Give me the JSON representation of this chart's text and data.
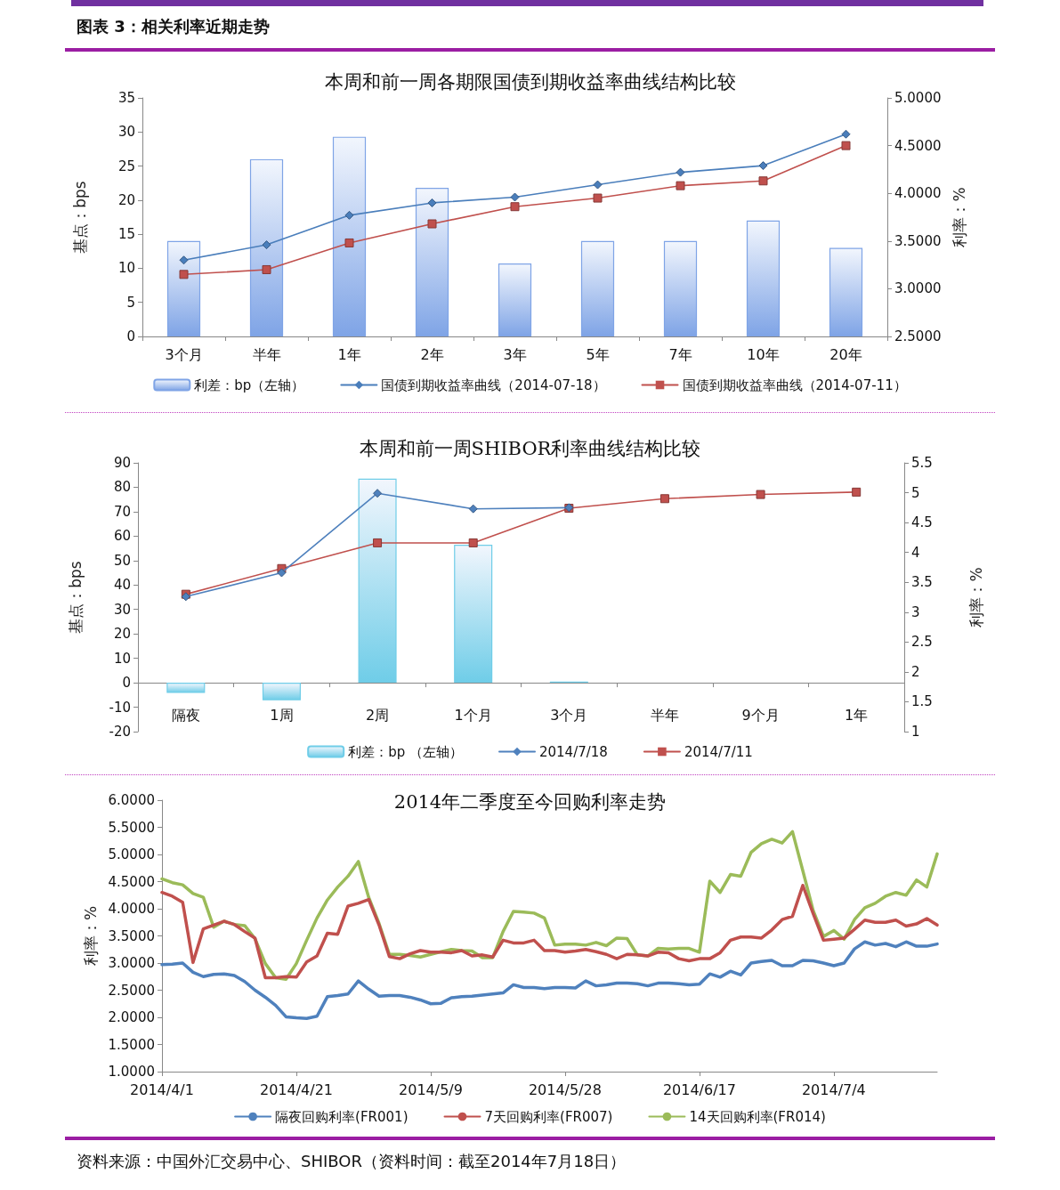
{
  "chart_data": [
    {
      "type": "bar",
      "title": "本周和前一周各期限国债到期收益率曲线结构比较",
      "annotations": [
        "图表 3：相关利率近期走势"
      ],
      "ylabel": "基点：bps",
      "y2label": "利率：%",
      "categories": [
        "3个月",
        "半年",
        "1年",
        "2年",
        "3年",
        "5年",
        "7年",
        "10年",
        "20年"
      ],
      "series": [
        {
          "name": "利差：bp（左轴）",
          "type": "bar",
          "color": "#7fa4e6",
          "values": [
            14,
            26,
            29.3,
            21.8,
            10.7,
            14,
            14,
            17,
            13
          ]
        },
        {
          "name": "国债到期收益率曲线（2014-07-18）",
          "type": "line",
          "axis": "y2",
          "marker": "diamond",
          "color": "#4a7ebb",
          "values": [
            3.3,
            3.46,
            3.77,
            3.9,
            3.96,
            4.09,
            4.22,
            4.29,
            4.62
          ]
        },
        {
          "name": "国债到期收益率曲线（2014-07-11）",
          "type": "line",
          "axis": "y2",
          "marker": "square",
          "color": "#c0504d",
          "values": [
            3.15,
            3.2,
            3.48,
            3.68,
            3.86,
            3.95,
            4.08,
            4.13,
            4.5
          ]
        }
      ],
      "ylim": [
        0,
        35
      ],
      "yticks": [
        0,
        5,
        10,
        15,
        20,
        25,
        30,
        35
      ],
      "y2lim": [
        2.5,
        5
      ],
      "y2ticks": [
        {
          "value": 2.5,
          "label": "2.5000"
        },
        {
          "value": 3,
          "label": "3.0000"
        },
        {
          "value": 3.5,
          "label": "3.5000"
        },
        {
          "value": 4,
          "label": "4.0000"
        },
        {
          "value": 4.5,
          "label": "4.5000"
        },
        {
          "value": 5,
          "label": "5.0000"
        }
      ],
      "grid": false,
      "legend": "bottom"
    },
    {
      "type": "bar",
      "title": "本周和前一周SHIBOR利率曲线结构比较",
      "ylabel": "基点：bps",
      "y2label": "利率：%",
      "categories": [
        "隔夜",
        "1周",
        "2周",
        "1个月",
        "3个月",
        "半年",
        "9个月",
        "1年"
      ],
      "series": [
        {
          "name": "利差：bp （左轴）",
          "type": "bar",
          "color": "#6fcde8",
          "values": [
            -4.2,
            -7.2,
            83.5,
            56.5,
            0.5,
            null,
            null,
            null
          ]
        },
        {
          "name": "2014/7/18",
          "type": "line",
          "axis": "y2",
          "marker": "diamond",
          "color": "#4f81bd",
          "values": [
            3.26,
            3.66,
            4.99,
            4.73,
            4.75,
            null,
            null,
            null
          ]
        },
        {
          "name": "2014/7/11",
          "type": "line",
          "axis": "y2",
          "marker": "square",
          "color": "#c0504d",
          "values": [
            3.3,
            3.73,
            4.16,
            4.16,
            4.74,
            4.9,
            4.97,
            5.01
          ]
        }
      ],
      "ylim": [
        -20,
        90
      ],
      "yticks": [
        -20,
        -10,
        0,
        10,
        20,
        30,
        40,
        50,
        60,
        70,
        80,
        90
      ],
      "y2lim": [
        1,
        5.5
      ],
      "y2ticks": [
        1,
        1.5,
        2,
        2.5,
        3,
        3.5,
        4,
        4.5,
        5,
        5.5
      ],
      "grid": false,
      "legend": "bottom"
    },
    {
      "type": "line",
      "title": "2014年二季度至今回购利率走势",
      "ylabel": "利率：%",
      "annotations": [
        "资料来源：中国外汇交易中心、SHIBOR（资料时间：截至2014年7月18日）"
      ],
      "categories": [
        "2014/4/1",
        null,
        null,
        null,
        null,
        null,
        null,
        null,
        null,
        null,
        null,
        null,
        null,
        "2014/4/21",
        null,
        null,
        null,
        null,
        null,
        null,
        null,
        null,
        null,
        null,
        null,
        null,
        "2014/5/9",
        null,
        null,
        null,
        null,
        null,
        null,
        null,
        null,
        null,
        null,
        null,
        null,
        "2014/5/28",
        null,
        null,
        null,
        null,
        null,
        null,
        null,
        null,
        null,
        null,
        null,
        null,
        "2014/6/17",
        null,
        null,
        null,
        null,
        null,
        null,
        null,
        null,
        null,
        null,
        null,
        null,
        "2014/7/4",
        null,
        null,
        null,
        null,
        null,
        null,
        null,
        null,
        null,
        null
      ],
      "series": [
        {
          "name": "隔夜回购利率(FR001)",
          "color": "#4f81bd",
          "values": [
            2.97,
            2.98,
            3.0,
            2.83,
            2.75,
            2.79,
            2.8,
            2.77,
            2.66,
            2.5,
            2.37,
            2.22,
            2.01,
            1.99,
            1.98,
            2.02,
            2.38,
            2.4,
            2.43,
            2.67,
            2.52,
            2.39,
            2.4,
            2.4,
            2.37,
            2.32,
            2.25,
            2.26,
            2.36,
            2.38,
            2.39,
            2.41,
            2.43,
            2.45,
            2.6,
            2.55,
            2.55,
            2.53,
            2.55,
            2.55,
            2.54,
            2.67,
            2.58,
            2.6,
            2.63,
            2.63,
            2.62,
            2.58,
            2.63,
            2.63,
            2.62,
            2.6,
            2.61,
            2.8,
            2.74,
            2.85,
            2.78,
            3.0,
            3.03,
            3.05,
            2.95,
            2.95,
            3.05,
            3.04,
            3.0,
            2.95,
            3.0,
            3.26,
            3.39,
            3.33,
            3.36,
            3.3,
            3.39,
            3.31,
            3.31,
            3.35
          ]
        },
        {
          "name": "7天回购利率(FR007)",
          "color": "#c0504d",
          "values": [
            4.3,
            4.23,
            4.12,
            3.01,
            3.63,
            3.7,
            3.77,
            3.71,
            3.58,
            3.46,
            2.73,
            2.73,
            2.75,
            2.74,
            3.02,
            3.13,
            3.55,
            3.53,
            4.05,
            4.1,
            4.17,
            3.7,
            3.12,
            3.08,
            3.17,
            3.23,
            3.2,
            3.2,
            3.19,
            3.23,
            3.13,
            3.15,
            3.11,
            3.42,
            3.37,
            3.37,
            3.42,
            3.23,
            3.23,
            3.2,
            3.22,
            3.25,
            3.21,
            3.16,
            3.08,
            3.16,
            3.15,
            3.13,
            3.2,
            3.19,
            3.08,
            3.04,
            3.08,
            3.08,
            3.19,
            3.42,
            3.48,
            3.48,
            3.46,
            3.61,
            3.8,
            3.86,
            4.43,
            3.91,
            3.42,
            3.44,
            3.46,
            3.62,
            3.79,
            3.75,
            3.75,
            3.79,
            3.68,
            3.72,
            3.82,
            3.7
          ]
        },
        {
          "name": "14天回购利率(FR014)",
          "color": "#9bbb59",
          "values": [
            4.55,
            4.48,
            4.44,
            4.28,
            4.21,
            3.66,
            3.77,
            3.71,
            3.69,
            3.45,
            2.99,
            2.73,
            2.7,
            2.99,
            3.42,
            3.83,
            4.16,
            4.4,
            4.6,
            4.87,
            4.21,
            3.73,
            3.16,
            3.16,
            3.14,
            3.11,
            3.16,
            3.21,
            3.25,
            3.23,
            3.22,
            3.1,
            3.1,
            3.58,
            3.95,
            3.94,
            3.92,
            3.83,
            3.33,
            3.35,
            3.35,
            3.33,
            3.38,
            3.32,
            3.46,
            3.45,
            3.15,
            3.13,
            3.27,
            3.26,
            3.27,
            3.27,
            3.2,
            4.51,
            4.3,
            4.63,
            4.6,
            5.04,
            5.2,
            5.28,
            5.21,
            5.42,
            4.7,
            3.97,
            3.49,
            3.6,
            3.44,
            3.8,
            4.02,
            4.1,
            4.23,
            4.3,
            4.25,
            4.53,
            4.4,
            5.01
          ]
        }
      ],
      "ylim": [
        1,
        6
      ],
      "yticks": [
        {
          "value": 1,
          "label": "1.0000"
        },
        {
          "value": 1.5,
          "label": "1.5000"
        },
        {
          "value": 2,
          "label": "2.0000"
        },
        {
          "value": 2.5,
          "label": "2.5000"
        },
        {
          "value": 3,
          "label": "3.0000"
        },
        {
          "value": 3.5,
          "label": "3.5000"
        },
        {
          "value": 4,
          "label": "4.0000"
        },
        {
          "value": 4.5,
          "label": "4.5000"
        },
        {
          "value": 5,
          "label": "5.0000"
        },
        {
          "value": 5.5,
          "label": "5.5000"
        },
        {
          "value": 6,
          "label": "6.0000"
        }
      ],
      "marker": "none",
      "grid": false,
      "legend": "bottom"
    }
  ]
}
